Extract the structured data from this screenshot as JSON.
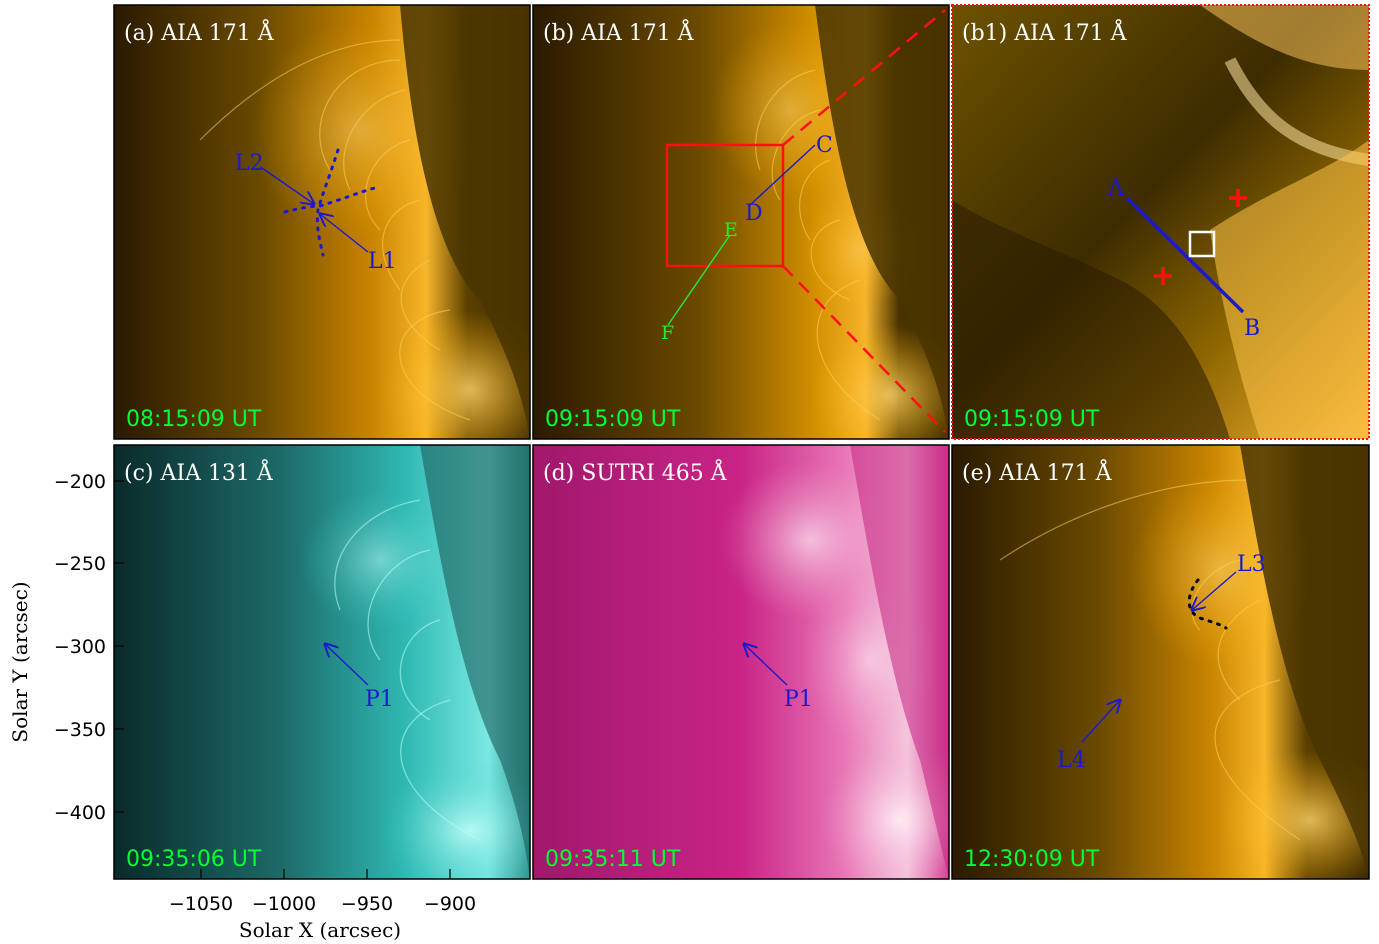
{
  "panels": [
    {
      "id": "a",
      "label": "(a) AIA 171 Å",
      "time": "08:15:09 UT"
    },
    {
      "id": "b",
      "label": "(b) AIA 171 Å",
      "time": "09:15:09 UT"
    },
    {
      "id": "b1",
      "label": "(b1) AIA 171 Å",
      "time": "09:15:09 UT"
    },
    {
      "id": "c",
      "label": "(c) AIA 131 Å",
      "time": "09:35:06 UT"
    },
    {
      "id": "d",
      "label": "(d) SUTRI 465 Å",
      "time": "09:35:11 UT"
    },
    {
      "id": "e",
      "label": "(e) AIA 171 Å",
      "time": "12:30:09 UT"
    }
  ],
  "annotations": {
    "a": {
      "l2": "L2",
      "l1": "L1"
    },
    "b": {
      "c": "C",
      "d": "D",
      "e": "E",
      "f": "F"
    },
    "b1": {
      "a": "A",
      "b": "B"
    },
    "c": {
      "p1": "P1"
    },
    "d": {
      "p1": "P1"
    },
    "e": {
      "l3": "L3",
      "l4": "L4"
    }
  },
  "axes": {
    "y_title": "Solar Y (arcsec)",
    "x_title": "Solar X (arcsec)",
    "y_ticks": [
      "−200",
      "−250",
      "−300",
      "−350",
      "−400"
    ],
    "x_ticks": [
      "−1050",
      "−1000",
      "−950",
      "−900"
    ]
  },
  "colors": {
    "aia171": "#f0a000",
    "aia131": "#33ddd6",
    "sutri465": "#d0208a",
    "time": "#00ff33",
    "annotation": "#1a1acc",
    "box": "#ff1010"
  }
}
